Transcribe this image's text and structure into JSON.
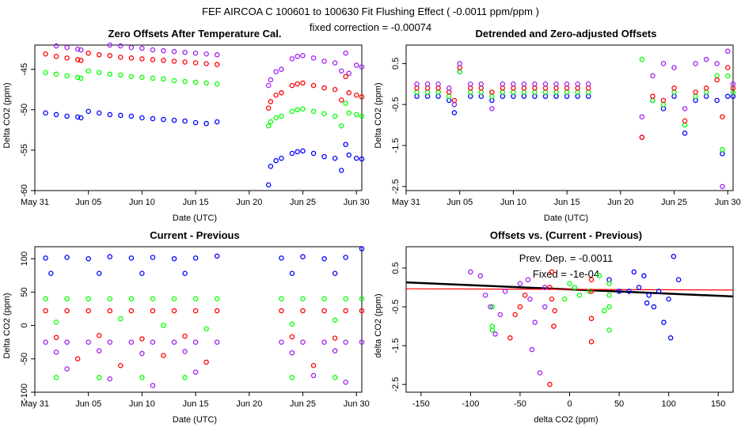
{
  "figure": {
    "title": "FEF   AIRCOA C   100601 to 100630   Fit Flushing Effect ( -0.0011 ppm/ppm )",
    "subtitle": "fixed correction = -0.00074"
  },
  "colors": {
    "blue": "#0000ff",
    "red": "#ff0000",
    "green": "#00ff00",
    "purple": "#a020f0",
    "black": "#000000"
  },
  "chart_data": [
    {
      "id": "zero_offsets",
      "type": "scatter",
      "title": "Zero Offsets After Temperature Cal.",
      "xlabel": "Date (UTC)",
      "ylabel": "Delta CO2 (ppm)",
      "xlim": [
        0,
        30.5
      ],
      "ylim": [
        -60,
        -42
      ],
      "xticks": [
        0,
        5,
        10,
        15,
        20,
        25,
        30
      ],
      "xticklabels": [
        "May 31",
        "Jun 05",
        "Jun 10",
        "Jun 15",
        "Jun 20",
        "Jun 25",
        "Jun 30"
      ],
      "yticks": [
        -60,
        -55,
        -50,
        -45
      ],
      "yticklabels": [
        "-60",
        "-55",
        "-50",
        "-45"
      ],
      "series": [
        {
          "name": "purple",
          "color": "purple",
          "x": [
            1,
            2,
            3,
            4,
            4.3,
            5,
            6,
            7,
            8,
            9,
            10,
            11,
            12,
            13,
            14,
            15,
            16,
            17,
            21.8,
            22,
            22.5,
            23,
            24,
            24.5,
            25,
            26,
            27,
            28,
            28.6,
            29,
            29.3,
            30,
            30.5
          ],
          "y": [
            -41.8,
            -42.1,
            -42.3,
            -42.5,
            -42.6,
            -41.6,
            -41.8,
            -42.0,
            -42.1,
            -42.3,
            -42.4,
            -42.6,
            -42.7,
            -42.8,
            -42.9,
            -43.0,
            -43.1,
            -43.2,
            -47.0,
            -46.3,
            -45.3,
            -45.0,
            -43.7,
            -43.4,
            -43.3,
            -43.6,
            -44.0,
            -44.2,
            -45.2,
            -43.0,
            -45.5,
            -44.5,
            -44.7
          ]
        },
        {
          "name": "red",
          "color": "red",
          "x": [
            1,
            2,
            3,
            4,
            4.3,
            5,
            6,
            7,
            8,
            9,
            10,
            11,
            12,
            13,
            14,
            15,
            16,
            17,
            21.8,
            22,
            22.5,
            23,
            24,
            24.5,
            25,
            26,
            27,
            28,
            28.6,
            29,
            29.3,
            30,
            30.5
          ],
          "y": [
            -43.1,
            -43.4,
            -43.6,
            -43.8,
            -43.9,
            -43.0,
            -43.2,
            -43.3,
            -43.5,
            -43.6,
            -43.7,
            -43.8,
            -43.9,
            -44.0,
            -44.1,
            -44.2,
            -44.3,
            -44.4,
            -49.8,
            -49.0,
            -48.2,
            -47.9,
            -47.0,
            -46.8,
            -46.7,
            -47.0,
            -47.3,
            -47.5,
            -48.8,
            -45.9,
            -47.9,
            -48.2,
            -48.4
          ]
        },
        {
          "name": "green",
          "color": "green",
          "x": [
            1,
            2,
            3,
            4,
            4.3,
            5,
            6,
            7,
            8,
            9,
            10,
            11,
            12,
            13,
            14,
            15,
            16,
            17,
            21.8,
            22,
            22.5,
            23,
            24,
            24.5,
            25,
            26,
            27,
            28,
            28.6,
            29,
            29.3,
            30,
            30.5
          ],
          "y": [
            -45.4,
            -45.6,
            -45.8,
            -46.0,
            -46.1,
            -45.2,
            -45.4,
            -45.6,
            -45.7,
            -45.9,
            -46.0,
            -46.1,
            -46.2,
            -46.4,
            -46.5,
            -46.6,
            -46.7,
            -46.8,
            -52.0,
            -51.5,
            -51.0,
            -50.8,
            -50.2,
            -50.0,
            -49.9,
            -50.2,
            -50.5,
            -50.8,
            -52.0,
            -49.2,
            -50.4,
            -50.6,
            -50.8
          ]
        },
        {
          "name": "blue",
          "color": "blue",
          "x": [
            1,
            2,
            3,
            4,
            4.3,
            5,
            6,
            7,
            8,
            9,
            10,
            11,
            12,
            13,
            14,
            15,
            16,
            17,
            21.8,
            22,
            22.5,
            23,
            24,
            24.5,
            25,
            26,
            27,
            28,
            28.6,
            29,
            29.3,
            30,
            30.5
          ],
          "y": [
            -50.4,
            -50.6,
            -50.8,
            -50.9,
            -51.0,
            -50.2,
            -50.4,
            -50.6,
            -50.7,
            -50.8,
            -51.0,
            -51.1,
            -51.2,
            -51.3,
            -51.4,
            -51.6,
            -51.7,
            -51.5,
            -59.3,
            -57.0,
            -56.3,
            -56.0,
            -55.4,
            -55.2,
            -55.1,
            -55.4,
            -55.8,
            -56.0,
            -57.5,
            -54.3,
            -55.6,
            -56.0,
            -56.1
          ]
        }
      ]
    },
    {
      "id": "detrended",
      "type": "scatter",
      "title": "Detrended and Zero-adjusted Offsets",
      "xlabel": "Date (UTC)",
      "ylabel": "Delta CO2 (ppm)",
      "xlim": [
        0,
        30.5
      ],
      "ylim": [
        -2.6,
        0.95
      ],
      "xticks": [
        0,
        5,
        10,
        15,
        20,
        25,
        30
      ],
      "xticklabels": [
        "May 31",
        "Jun 05",
        "Jun 10",
        "Jun 15",
        "Jun 20",
        "Jun 25",
        "Jun 30"
      ],
      "yticks": [
        -2.5,
        -1.5,
        -0.5,
        0.5
      ],
      "yticklabels": [
        "-2.5",
        "-1.5",
        "-0.5",
        "0.5"
      ],
      "series": [
        {
          "name": "blue",
          "color": "blue",
          "x": [
            1,
            2,
            3,
            4,
            4.5,
            5,
            6,
            7,
            8,
            9,
            10,
            11,
            12,
            13,
            14,
            15,
            16,
            17,
            22,
            23,
            24,
            25,
            26,
            27,
            28,
            29,
            29.5,
            30,
            30.5
          ],
          "y": [
            -0.3,
            -0.3,
            -0.3,
            -0.4,
            -0.7,
            0.3,
            -0.3,
            -0.3,
            -0.4,
            -0.3,
            -0.3,
            -0.3,
            -0.3,
            -0.3,
            -0.3,
            -0.3,
            -0.3,
            -0.3,
            -1.3,
            -0.4,
            -0.6,
            -0.3,
            -1.2,
            -0.4,
            -0.3,
            -0.4,
            -1.7,
            -0.3,
            -0.3
          ]
        },
        {
          "name": "green",
          "color": "green",
          "x": [
            1,
            2,
            3,
            4,
            4.5,
            5,
            6,
            7,
            8,
            9,
            10,
            11,
            12,
            13,
            14,
            15,
            16,
            17,
            22,
            23,
            24,
            25,
            26,
            27,
            28,
            29,
            29.5,
            30,
            30.5
          ],
          "y": [
            -0.2,
            -0.2,
            -0.2,
            -0.3,
            -0.5,
            0.3,
            -0.2,
            -0.2,
            -0.3,
            -0.2,
            -0.2,
            -0.2,
            -0.2,
            -0.2,
            -0.2,
            -0.2,
            -0.2,
            -0.2,
            0.6,
            -0.4,
            -0.5,
            -0.2,
            -1.0,
            -0.3,
            -0.2,
            0.2,
            -1.6,
            0.2,
            -0.2
          ]
        },
        {
          "name": "red",
          "color": "red",
          "x": [
            1,
            2,
            3,
            4,
            4.5,
            5,
            6,
            7,
            8,
            9,
            10,
            11,
            12,
            13,
            14,
            15,
            16,
            17,
            22,
            23,
            24,
            25,
            26,
            27,
            28,
            29,
            29.5,
            30,
            30.5
          ],
          "y": [
            -0.1,
            -0.1,
            -0.1,
            -0.2,
            -0.4,
            0.4,
            -0.1,
            -0.1,
            -0.2,
            -0.1,
            -0.1,
            -0.1,
            -0.1,
            -0.1,
            -0.1,
            -0.1,
            -0.1,
            -0.1,
            -1.3,
            -0.3,
            -0.4,
            -0.1,
            -0.9,
            -0.2,
            -0.1,
            0.1,
            -0.8,
            0.4,
            -0.1
          ]
        },
        {
          "name": "purple",
          "color": "purple",
          "x": [
            1,
            2,
            3,
            4,
            4.5,
            5,
            6,
            7,
            8,
            9,
            10,
            11,
            12,
            13,
            14,
            15,
            16,
            17,
            22,
            23,
            24,
            25,
            26,
            27,
            28,
            29,
            29.5,
            30,
            30.5
          ],
          "y": [
            0.0,
            0.0,
            0.0,
            -0.1,
            -0.5,
            0.5,
            0.0,
            0.0,
            -0.6,
            0.0,
            0.0,
            0.0,
            0.0,
            0.0,
            0.0,
            0.0,
            0.0,
            0.0,
            -0.8,
            0.2,
            0.5,
            0.4,
            -0.6,
            0.5,
            0.6,
            0.5,
            -2.5,
            0.8,
            0.0
          ]
        }
      ]
    },
    {
      "id": "current_previous",
      "type": "scatter",
      "title": "Current - Previous",
      "xlabel": "Date (UTC)",
      "ylabel": "Delta CO2 (ppm)",
      "xlim": [
        0,
        30.5
      ],
      "ylim": [
        -100,
        118
      ],
      "xticks": [
        0,
        5,
        10,
        15,
        20,
        25,
        30
      ],
      "xticklabels": [
        "May 31",
        "Jun 05",
        "Jun 10",
        "Jun 15",
        "Jun 20",
        "Jun 25",
        "Jun 30"
      ],
      "yticks": [
        -100,
        -50,
        0,
        50,
        100
      ],
      "yticklabels": [
        "-100",
        "-50",
        "0",
        "50",
        "100"
      ],
      "series": [
        {
          "name": "blue",
          "color": "blue",
          "x": [
            1,
            3,
            5,
            7,
            9,
            11,
            13,
            15,
            17,
            23,
            25,
            27,
            29,
            30.5,
            1.5,
            6,
            10,
            14,
            24,
            28
          ],
          "y": [
            101,
            102,
            100,
            103,
            101,
            102,
            100,
            101,
            104,
            101,
            103,
            100,
            102,
            115,
            78,
            78,
            78,
            78,
            78,
            78
          ]
        },
        {
          "name": "green",
          "color": "green",
          "x": [
            1,
            3,
            5,
            7,
            9,
            11,
            13,
            15,
            17,
            23,
            25,
            27,
            29,
            30.5,
            2,
            8,
            12,
            16,
            24,
            28,
            2,
            6,
            10,
            14,
            24,
            28
          ],
          "y": [
            40,
            40,
            40,
            40,
            40,
            40,
            40,
            40,
            40,
            40,
            40,
            40,
            40,
            40,
            5,
            10,
            0,
            -5,
            2,
            8,
            -78,
            -78,
            -78,
            -78,
            -78,
            -78
          ]
        },
        {
          "name": "red",
          "color": "red",
          "x": [
            1,
            3,
            5,
            7,
            9,
            11,
            13,
            15,
            17,
            23,
            25,
            27,
            29,
            30.5,
            2,
            6,
            10,
            14,
            24,
            28,
            4,
            8,
            12,
            16,
            26
          ],
          "y": [
            22,
            22,
            22,
            22,
            22,
            22,
            22,
            22,
            22,
            22,
            22,
            22,
            22,
            22,
            -18,
            -15,
            -20,
            -16,
            -17,
            -19,
            -50,
            -60,
            -45,
            -55,
            -60
          ]
        },
        {
          "name": "purple",
          "color": "purple",
          "x": [
            1,
            3,
            5,
            7,
            9,
            11,
            13,
            15,
            17,
            23,
            25,
            27,
            29,
            30.5,
            2,
            6,
            10,
            14,
            24,
            28,
            3,
            7,
            11,
            15,
            26,
            29
          ],
          "y": [
            -25,
            -25,
            -25,
            -25,
            -25,
            -25,
            -25,
            -25,
            -25,
            -25,
            -25,
            -25,
            -25,
            -25,
            -40,
            -38,
            -42,
            -39,
            -41,
            -38,
            -65,
            -80,
            -90,
            -70,
            -75,
            -85
          ]
        }
      ]
    },
    {
      "id": "offsets_vs_current_previous",
      "type": "scatter",
      "title": "Offsets vs. (Current - Previous)",
      "xlabel": "delta CO2 (ppm)",
      "ylabel": "delta CO2 (ppm)",
      "xlim": [
        -165,
        165
      ],
      "ylim": [
        -2.7,
        1.05
      ],
      "xticks": [
        -150,
        -100,
        -50,
        0,
        50,
        100,
        150
      ],
      "xticklabels": [
        "-150",
        "-100",
        "-50",
        "0",
        "50",
        "100",
        "150"
      ],
      "yticks": [
        -2.5,
        -1.5,
        -0.5,
        0.5
      ],
      "yticklabels": [
        "-2.5",
        "-1.5",
        "-0.5",
        "0.5"
      ],
      "annotations": [
        "Prev. Dep. = -0.0011",
        "Fixed = -1e-04"
      ],
      "fit_lines": [
        {
          "name": "prev_dep",
          "color": "black",
          "slope": -0.0011,
          "intercept": -0.05
        },
        {
          "name": "fixed",
          "color": "red",
          "slope": -0.0001,
          "intercept": -0.05
        }
      ],
      "series": [
        {
          "name": "blue",
          "color": "blue",
          "x": [
            60,
            70,
            80,
            90,
            100,
            105,
            75,
            85,
            95,
            102,
            78,
            65,
            110,
            50,
            40
          ],
          "y": [
            -0.1,
            0.0,
            -0.2,
            -0.1,
            -0.3,
            0.8,
            0.3,
            -0.5,
            -0.9,
            -1.3,
            -0.4,
            0.4,
            0.2,
            -0.1,
            0.2
          ]
        },
        {
          "name": "green",
          "color": "green",
          "x": [
            40,
            40,
            40,
            40,
            5,
            10,
            0,
            -5,
            -78,
            -78,
            -78,
            30,
            35,
            20
          ],
          "y": [
            0.1,
            -0.2,
            -1.1,
            -0.5,
            0.0,
            -0.2,
            0.1,
            -0.3,
            -1.0,
            -1.1,
            -0.5,
            0.3,
            -0.6,
            -0.1
          ]
        },
        {
          "name": "red",
          "color": "red",
          "x": [
            22,
            22,
            22,
            22,
            -18,
            -15,
            -20,
            -16,
            -50,
            -60,
            -45,
            -55,
            -20,
            -18
          ],
          "y": [
            -0.1,
            -0.8,
            -1.4,
            0.2,
            -0.3,
            -0.6,
            0.0,
            -1.0,
            -0.5,
            -1.3,
            -0.2,
            -0.7,
            -2.5,
            0.4
          ]
        },
        {
          "name": "purple",
          "color": "purple",
          "x": [
            -25,
            -25,
            -40,
            -38,
            -42,
            -65,
            -80,
            -90,
            -70,
            -75,
            -85,
            -30,
            -35,
            -50,
            -100
          ],
          "y": [
            0.0,
            -0.5,
            -0.3,
            -1.6,
            0.2,
            -0.1,
            -0.5,
            0.3,
            -0.7,
            -1.2,
            -0.2,
            -2.2,
            -0.9,
            0.1,
            0.4
          ]
        }
      ]
    }
  ]
}
